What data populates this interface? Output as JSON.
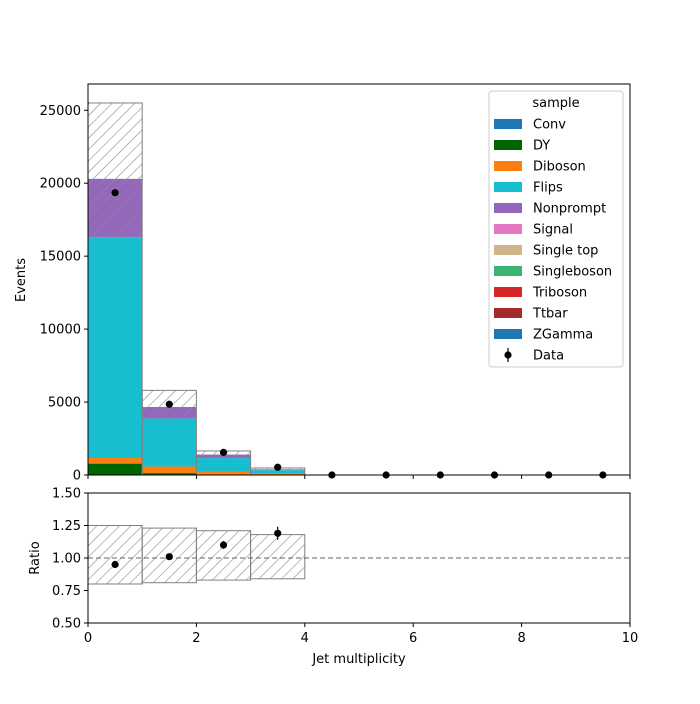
{
  "chart_data": [
    {
      "type": "bar",
      "stacked": true,
      "xlabel": "",
      "ylabel": "Events",
      "xlim": [
        0,
        10
      ],
      "ylim": [
        0,
        26800
      ],
      "yticks": [
        0,
        5000,
        10000,
        15000,
        20000,
        25000
      ],
      "bin_edges": [
        0,
        1,
        2,
        3,
        4,
        5,
        6,
        7,
        8,
        9,
        10
      ],
      "legend_title": "sample",
      "legend_position": "top-right",
      "series": [
        {
          "name": "Conv",
          "color": "#1f77b4",
          "values": [
            0,
            0,
            0,
            0,
            0,
            0,
            0,
            0,
            0,
            0
          ]
        },
        {
          "name": "DY",
          "color": "#006400",
          "values": [
            780,
            130,
            40,
            10,
            0,
            0,
            0,
            0,
            0,
            0
          ]
        },
        {
          "name": "Diboson",
          "color": "#ff7f0e",
          "values": [
            420,
            450,
            170,
            70,
            0,
            0,
            0,
            0,
            0,
            0
          ]
        },
        {
          "name": "Flips",
          "color": "#17becf",
          "values": [
            15100,
            3300,
            950,
            250,
            0,
            0,
            0,
            0,
            0,
            0
          ]
        },
        {
          "name": "Nonprompt",
          "color": "#9467bd",
          "values": [
            4000,
            780,
            240,
            60,
            0,
            0,
            0,
            0,
            0,
            0
          ]
        },
        {
          "name": "Signal",
          "color": "#e377c2",
          "values": [
            0,
            0,
            0,
            0,
            0,
            0,
            0,
            0,
            0,
            0
          ]
        },
        {
          "name": "Single top",
          "color": "#d2b48c",
          "values": [
            0,
            0,
            0,
            0,
            0,
            0,
            0,
            0,
            0,
            0
          ]
        },
        {
          "name": "Singleboson",
          "color": "#3cb371",
          "values": [
            0,
            0,
            0,
            0,
            0,
            0,
            0,
            0,
            0,
            0
          ]
        },
        {
          "name": "Triboson",
          "color": "#d62728",
          "values": [
            0,
            0,
            0,
            0,
            0,
            0,
            0,
            0,
            0,
            0
          ]
        },
        {
          "name": "Ttbar",
          "color": "#a52a2a",
          "values": [
            0,
            0,
            0,
            0,
            0,
            0,
            0,
            0,
            0,
            0
          ]
        },
        {
          "name": "ZGamma",
          "color": "#1f77b4",
          "values": [
            0,
            0,
            0,
            0,
            0,
            0,
            0,
            0,
            0,
            0
          ]
        }
      ],
      "uncertainty_band": {
        "lower": [
          16300,
          3900,
          1200,
          330,
          0,
          0,
          0,
          0,
          0,
          0
        ],
        "upper": [
          25500,
          5800,
          1650,
          480,
          0,
          0,
          0,
          0,
          0,
          0
        ]
      },
      "data": {
        "name": "Data",
        "x": [
          0.5,
          1.5,
          2.5,
          3.5,
          4.5,
          5.5,
          6.5,
          7.5,
          8.5,
          9.5
        ],
        "y": [
          19350,
          4850,
          1550,
          530,
          0,
          0,
          0,
          0,
          0,
          0
        ]
      }
    },
    {
      "type": "line",
      "xlabel": "Jet multiplicity",
      "ylabel": "Ratio",
      "xlim": [
        0,
        10
      ],
      "ylim": [
        0.5,
        1.5
      ],
      "xticks": [
        0,
        2,
        4,
        6,
        8,
        10
      ],
      "yticks": [
        0.5,
        0.75,
        1.0,
        1.25,
        1.5
      ],
      "ytick_labels": [
        "0.50",
        "0.75",
        "1.00",
        "1.25",
        "1.50"
      ],
      "reference_line": 1.0,
      "uncertainty_band": {
        "bin_edges": [
          0,
          1,
          2,
          3,
          4
        ],
        "lower": [
          0.8,
          0.81,
          0.83,
          0.84
        ],
        "upper": [
          1.25,
          1.23,
          1.21,
          1.18
        ]
      },
      "ratio_points": {
        "x": [
          0.5,
          1.5,
          2.5,
          3.5
        ],
        "y": [
          0.95,
          1.01,
          1.1,
          1.19
        ],
        "err": [
          0.01,
          0.015,
          0.03,
          0.05
        ]
      }
    }
  ]
}
